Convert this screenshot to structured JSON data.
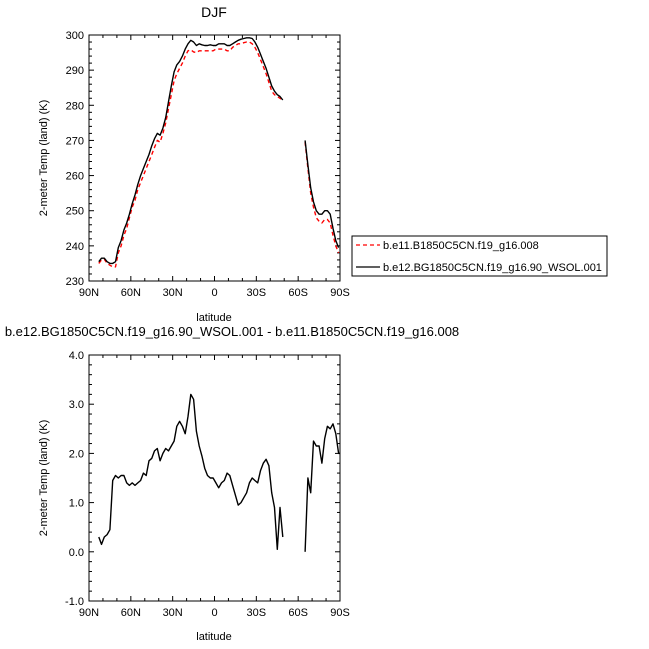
{
  "chart_data": [
    {
      "type": "line",
      "title": "DJF",
      "xlabel": "latitude",
      "ylabel": "2-meter Temp (land) (K)",
      "xlim": [
        -90,
        90
      ],
      "ylim": [
        230,
        300
      ],
      "xticks": [
        "90N",
        "60N",
        "30N",
        "0",
        "30S",
        "60S",
        "90S"
      ],
      "yticks": [
        "230",
        "240",
        "250",
        "260",
        "270",
        "280",
        "290",
        "300"
      ],
      "legend": "right",
      "series": [
        {
          "name": "b.e11.B1850C5CN.f19_g16.008",
          "color": "#ff0000",
          "dash": "dashed",
          "segments": [
            [
              [
                -83,
                235.0
              ],
              [
                -81,
                236.0
              ],
              [
                -79,
                236.2
              ],
              [
                -77,
                235.0
              ],
              [
                -75,
                234.5
              ],
              [
                -73,
                234.0
              ],
              [
                -71,
                234.0
              ],
              [
                -69,
                238.0
              ],
              [
                -67,
                240.0
              ],
              [
                -65,
                243.0
              ],
              [
                -63,
                245.0
              ],
              [
                -61,
                248.0
              ],
              [
                -59,
                251.0
              ],
              [
                -57,
                253.0
              ],
              [
                -55,
                256.0
              ],
              [
                -53,
                258.0
              ],
              [
                -51,
                260.0
              ],
              [
                -49,
                262.0
              ],
              [
                -47,
                264.0
              ],
              [
                -45,
                266.0
              ],
              [
                -43,
                268.0
              ],
              [
                -41,
                270.0
              ],
              [
                -39,
                269.5
              ],
              [
                -37,
                272.0
              ],
              [
                -35,
                275.0
              ],
              [
                -33,
                279.0
              ],
              [
                -31,
                283.0
              ],
              [
                -29,
                287.0
              ],
              [
                -27,
                289.0
              ],
              [
                -25,
                290.5
              ],
              [
                -23,
                292.0
              ],
              [
                -21,
                294.0
              ],
              [
                -19,
                295.5
              ],
              [
                -17,
                295.8
              ],
              [
                -15,
                295.2
              ],
              [
                -13,
                295.0
              ],
              [
                -11,
                295.5
              ],
              [
                -9,
                295.5
              ],
              [
                -7,
                295.5
              ],
              [
                -5,
                295.5
              ],
              [
                -3,
                295.5
              ],
              [
                -1,
                295.5
              ],
              [
                1,
                296.0
              ],
              [
                3,
                296.0
              ],
              [
                5,
                296.0
              ],
              [
                7,
                296.0
              ],
              [
                9,
                295.5
              ],
              [
                11,
                295.5
              ],
              [
                13,
                296.5
              ],
              [
                15,
                297.0
              ],
              [
                17,
                297.5
              ],
              [
                19,
                297.5
              ],
              [
                21,
                297.8
              ],
              [
                23,
                298.0
              ],
              [
                25,
                298.0
              ],
              [
                27,
                297.5
              ],
              [
                29,
                296.5
              ],
              [
                31,
                295.0
              ],
              [
                33,
                293.0
              ],
              [
                35,
                291.0
              ],
              [
                37,
                289.0
              ],
              [
                39,
                286.5
              ],
              [
                41,
                284.0
              ],
              [
                43,
                283.0
              ],
              [
                45,
                282.5
              ],
              [
                47,
                282.0
              ],
              [
                49,
                281.5
              ]
            ],
            [
              [
                65,
                269.5
              ],
              [
                67,
                262.0
              ],
              [
                69,
                255.0
              ],
              [
                71,
                251.0
              ],
              [
                73,
                248.0
              ],
              [
                75,
                247.0
              ],
              [
                77,
                246.5
              ],
              [
                79,
                247.5
              ],
              [
                81,
                247.5
              ],
              [
                83,
                246.5
              ],
              [
                85,
                243.0
              ],
              [
                87,
                240.0
              ],
              [
                89,
                238.0
              ]
            ]
          ]
        },
        {
          "name": "b.e12.BG1850C5CN.f19_g16.90_WSOL.001",
          "color": "#000000",
          "dash": "solid",
          "segments": [
            [
              [
                -83,
                235.5
              ],
              [
                -81,
                236.5
              ],
              [
                -79,
                236.5
              ],
              [
                -77,
                235.5
              ],
              [
                -75,
                235.0
              ],
              [
                -73,
                235.0
              ],
              [
                -71,
                235.5
              ],
              [
                -69,
                239.5
              ],
              [
                -67,
                241.5
              ],
              [
                -65,
                244.5
              ],
              [
                -63,
                246.5
              ],
              [
                -61,
                249.0
              ],
              [
                -59,
                252.0
              ],
              [
                -57,
                254.5
              ],
              [
                -55,
                257.5
              ],
              [
                -53,
                260.0
              ],
              [
                -51,
                262.0
              ],
              [
                -49,
                264.0
              ],
              [
                -47,
                266.0
              ],
              [
                -45,
                268.5
              ],
              [
                -43,
                270.5
              ],
              [
                -41,
                272.0
              ],
              [
                -39,
                271.5
              ],
              [
                -37,
                273.5
              ],
              [
                -35,
                276.5
              ],
              [
                -33,
                281.0
              ],
              [
                -31,
                285.5
              ],
              [
                -29,
                289.5
              ],
              [
                -27,
                291.5
              ],
              [
                -25,
                292.5
              ],
              [
                -23,
                294.0
              ],
              [
                -21,
                296.0
              ],
              [
                -19,
                297.5
              ],
              [
                -17,
                298.5
              ],
              [
                -15,
                298.0
              ],
              [
                -13,
                297.0
              ],
              [
                -11,
                297.5
              ],
              [
                -9,
                297.2
              ],
              [
                -7,
                297.0
              ],
              [
                -5,
                297.0
              ],
              [
                -3,
                297.2
              ],
              [
                -1,
                297.0
              ],
              [
                1,
                297.0
              ],
              [
                3,
                297.5
              ],
              [
                5,
                297.5
              ],
              [
                7,
                297.5
              ],
              [
                9,
                297.0
              ],
              [
                11,
                297.0
              ],
              [
                13,
                297.5
              ],
              [
                15,
                298.0
              ],
              [
                17,
                298.5
              ],
              [
                19,
                298.8
              ],
              [
                21,
                299.0
              ],
              [
                23,
                299.2
              ],
              [
                25,
                299.2
              ],
              [
                27,
                299.0
              ],
              [
                29,
                298.0
              ],
              [
                31,
                296.5
              ],
              [
                33,
                294.5
              ],
              [
                35,
                292.5
              ],
              [
                37,
                290.5
              ],
              [
                39,
                288.0
              ],
              [
                41,
                285.5
              ],
              [
                43,
                284.0
              ],
              [
                45,
                283.0
              ],
              [
                47,
                282.5
              ],
              [
                49,
                281.5
              ]
            ],
            [
              [
                65,
                270.0
              ],
              [
                67,
                263.0
              ],
              [
                69,
                256.5
              ],
              [
                71,
                252.5
              ],
              [
                73,
                250.0
              ],
              [
                75,
                249.0
              ],
              [
                77,
                249.0
              ],
              [
                79,
                250.0
              ],
              [
                81,
                250.0
              ],
              [
                83,
                249.0
              ],
              [
                85,
                245.0
              ],
              [
                87,
                241.5
              ],
              [
                89,
                239.5
              ]
            ]
          ]
        }
      ]
    },
    {
      "type": "line",
      "title": "b.e12.BG1850C5CN.f19_g16.90_WSOL.001 - b.e11.B1850C5CN.f19_g16.008",
      "xlabel": "latitude",
      "ylabel": "2-meter Temp (land) (K)",
      "xlim": [
        -90,
        90
      ],
      "ylim": [
        -1.0,
        4.0
      ],
      "xticks": [
        "90N",
        "60N",
        "30N",
        "0",
        "30S",
        "60S",
        "90S"
      ],
      "yticks": [
        "-1.0",
        "0.0",
        "1.0",
        "2.0",
        "3.0",
        "4.0"
      ],
      "series": [
        {
          "color": "#000000",
          "dash": "solid",
          "segments": [
            [
              [
                -83,
                0.3
              ],
              [
                -81,
                0.15
              ],
              [
                -79,
                0.3
              ],
              [
                -77,
                0.35
              ],
              [
                -75,
                0.45
              ],
              [
                -73,
                1.45
              ],
              [
                -71,
                1.55
              ],
              [
                -69,
                1.5
              ],
              [
                -67,
                1.55
              ],
              [
                -65,
                1.55
              ],
              [
                -63,
                1.4
              ],
              [
                -61,
                1.35
              ],
              [
                -59,
                1.4
              ],
              [
                -57,
                1.35
              ],
              [
                -55,
                1.4
              ],
              [
                -53,
                1.45
              ],
              [
                -51,
                1.6
              ],
              [
                -49,
                1.55
              ],
              [
                -47,
                1.85
              ],
              [
                -45,
                1.9
              ],
              [
                -43,
                2.05
              ],
              [
                -41,
                2.1
              ],
              [
                -39,
                1.85
              ],
              [
                -37,
                2.0
              ],
              [
                -35,
                2.1
              ],
              [
                -33,
                2.05
              ],
              [
                -31,
                2.15
              ],
              [
                -29,
                2.25
              ],
              [
                -27,
                2.55
              ],
              [
                -25,
                2.65
              ],
              [
                -23,
                2.55
              ],
              [
                -21,
                2.4
              ],
              [
                -19,
                2.75
              ],
              [
                -17,
                3.2
              ],
              [
                -15,
                3.1
              ],
              [
                -13,
                2.45
              ],
              [
                -11,
                2.15
              ],
              [
                -9,
                1.95
              ],
              [
                -7,
                1.7
              ],
              [
                -5,
                1.55
              ],
              [
                -3,
                1.5
              ],
              [
                -1,
                1.5
              ],
              [
                1,
                1.4
              ],
              [
                3,
                1.3
              ],
              [
                5,
                1.4
              ],
              [
                7,
                1.45
              ],
              [
                9,
                1.6
              ],
              [
                11,
                1.55
              ],
              [
                13,
                1.35
              ],
              [
                15,
                1.15
              ],
              [
                17,
                0.95
              ],
              [
                19,
                1.0
              ],
              [
                21,
                1.1
              ],
              [
                23,
                1.2
              ],
              [
                25,
                1.4
              ],
              [
                27,
                1.5
              ],
              [
                29,
                1.45
              ],
              [
                31,
                1.4
              ],
              [
                33,
                1.65
              ],
              [
                35,
                1.8
              ],
              [
                37,
                1.88
              ],
              [
                39,
                1.75
              ],
              [
                41,
                1.2
              ],
              [
                43,
                0.9
              ],
              [
                45,
                0.05
              ],
              [
                47,
                0.9
              ],
              [
                49,
                0.3
              ]
            ],
            [
              [
                65,
                0.0
              ],
              [
                67,
                1.5
              ],
              [
                69,
                1.2
              ],
              [
                71,
                2.25
              ],
              [
                73,
                2.15
              ],
              [
                75,
                2.15
              ],
              [
                77,
                1.8
              ],
              [
                79,
                2.3
              ],
              [
                81,
                2.55
              ],
              [
                83,
                2.5
              ],
              [
                85,
                2.6
              ],
              [
                87,
                2.4
              ],
              [
                89,
                2.0
              ],
              [
                90,
                2.0
              ]
            ]
          ]
        }
      ]
    }
  ]
}
